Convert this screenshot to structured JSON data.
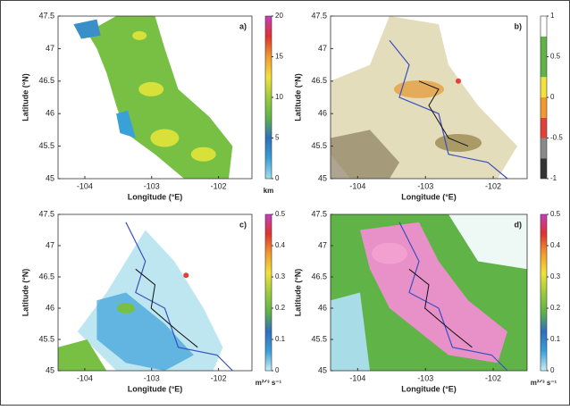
{
  "chart_data": [
    {
      "type": "heatmap",
      "panel_label": "a)",
      "x_label": "Longitude (°E)",
      "y_label": "Latitude (°N)",
      "xlim": [
        -104.4,
        -101.5
      ],
      "ylim": [
        45,
        47.5
      ],
      "xticks": [
        -104,
        -103,
        -102
      ],
      "yticks": [
        45,
        45.5,
        46,
        46.5,
        47,
        47.5
      ],
      "colorbar": {
        "lim": [
          0,
          20
        ],
        "ticks": [
          0,
          5,
          10,
          15,
          20
        ],
        "label": "km",
        "colors": [
          "#9fe0ee",
          "#3aa0d8",
          "#2e6fbf",
          "#5fb347",
          "#9ccc3c",
          "#f2e23a",
          "#f29a2e",
          "#e0322e",
          "#c43fbf"
        ],
        "discrete": false
      }
    },
    {
      "type": "heatmap",
      "panel_label": "b)",
      "x_label": "Longitude (°E)",
      "y_label": "Latitude (°N)",
      "xlim": [
        -104.4,
        -101.5
      ],
      "ylim": [
        45,
        47.5
      ],
      "xticks": [
        -104,
        -103,
        -102
      ],
      "yticks": [
        45,
        45.5,
        46,
        46.5,
        47,
        47.5
      ],
      "colorbar": {
        "lim": [
          -1,
          1
        ],
        "ticks": [
          -1,
          -0.5,
          0,
          0.5,
          1
        ],
        "colors": [
          "#333333",
          "#8a8a8a",
          "#e0423a",
          "#f29a2e",
          "#f2e23a",
          "#5fb347",
          "#5fb347",
          "#ffffff"
        ],
        "discrete": true
      }
    },
    {
      "type": "heatmap",
      "panel_label": "c)",
      "x_label": "Longitude (°E)",
      "y_label": "Latitude (°N)",
      "xlim": [
        -104.4,
        -101.5
      ],
      "ylim": [
        45,
        47.5
      ],
      "xticks": [
        -104,
        -103,
        -102
      ],
      "yticks": [
        45,
        45.5,
        46,
        46.5,
        47,
        47.5
      ],
      "colorbar": {
        "lim": [
          0,
          0.5
        ],
        "ticks": [
          0,
          0.1,
          0.2,
          0.3,
          0.4,
          0.5
        ],
        "label": "m²ᐟ³ s⁻¹",
        "colors": [
          "#c8f0f4",
          "#3aa0d8",
          "#2e6fbf",
          "#5fb347",
          "#9ccc3c",
          "#f2e23a",
          "#f29a2e",
          "#e0322e",
          "#c43fbf"
        ],
        "discrete": false
      }
    },
    {
      "type": "heatmap",
      "panel_label": "d)",
      "x_label": "Longitude (°E)",
      "y_label": "Latitude (°N)",
      "xlim": [
        -104.4,
        -101.5
      ],
      "ylim": [
        45,
        47.5
      ],
      "xticks": [
        -104,
        -103,
        -102
      ],
      "yticks": [
        45,
        45.5,
        46,
        46.5,
        47,
        47.5
      ],
      "colorbar": {
        "lim": [
          0,
          0.5
        ],
        "ticks": [
          0,
          0.1,
          0.2,
          0.3,
          0.4,
          0.5
        ],
        "label": "m²ᐟ³ s⁻¹",
        "colors": [
          "#c8f0f4",
          "#3aa0d8",
          "#2e6fbf",
          "#5fb347",
          "#9ccc3c",
          "#f2e23a",
          "#f29a2e",
          "#e0322e",
          "#c43fbf"
        ],
        "discrete": false
      }
    }
  ]
}
